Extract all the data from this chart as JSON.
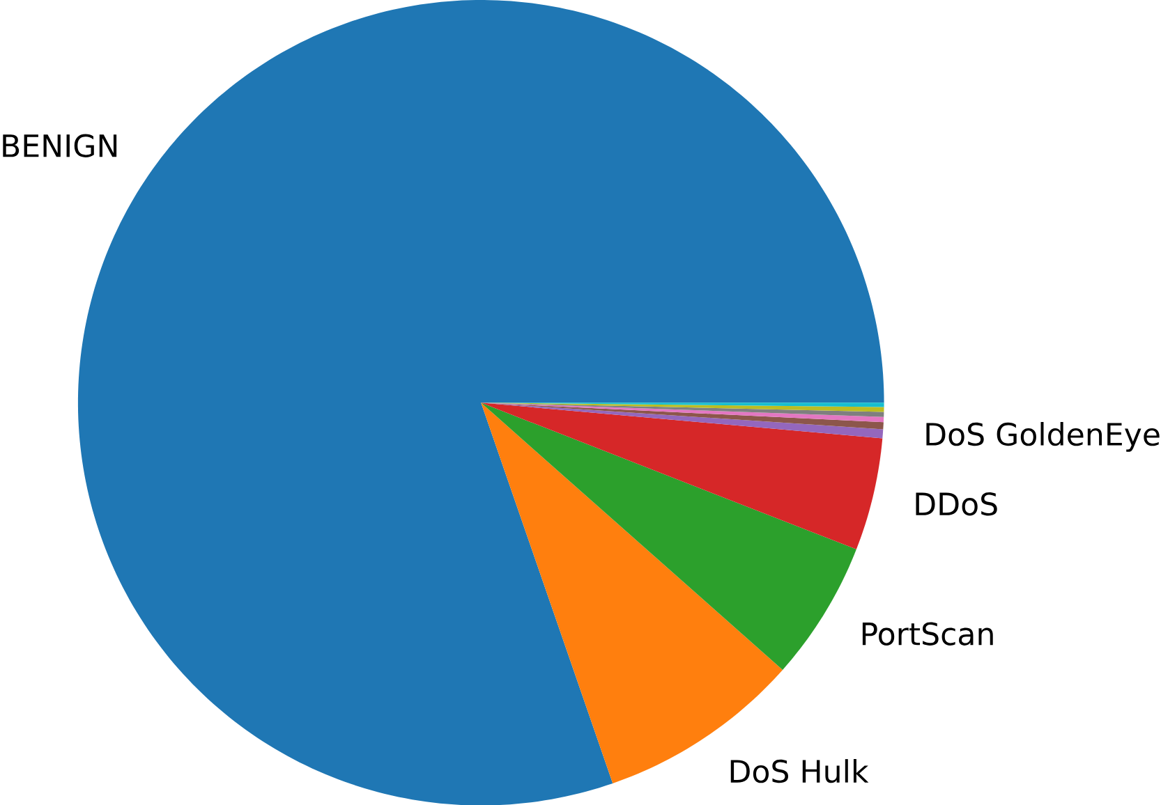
{
  "chart_data": {
    "type": "pie",
    "categories": [
      "BENIGN",
      "DoS Hulk",
      "PortScan",
      "DDoS",
      "DoS GoldenEye",
      null,
      null,
      null,
      null,
      null
    ],
    "values": [
      80.3,
      8.16,
      5.61,
      4.52,
      0.36,
      0.28,
      0.21,
      0.2,
      0.19,
      0.17
    ],
    "colors": [
      "#1f77b4",
      "#ff7f0e",
      "#2ca02c",
      "#d62728",
      "#9467bd",
      "#8c564b",
      "#e377c2",
      "#7f7f7f",
      "#bcbd22",
      "#17becf"
    ]
  }
}
